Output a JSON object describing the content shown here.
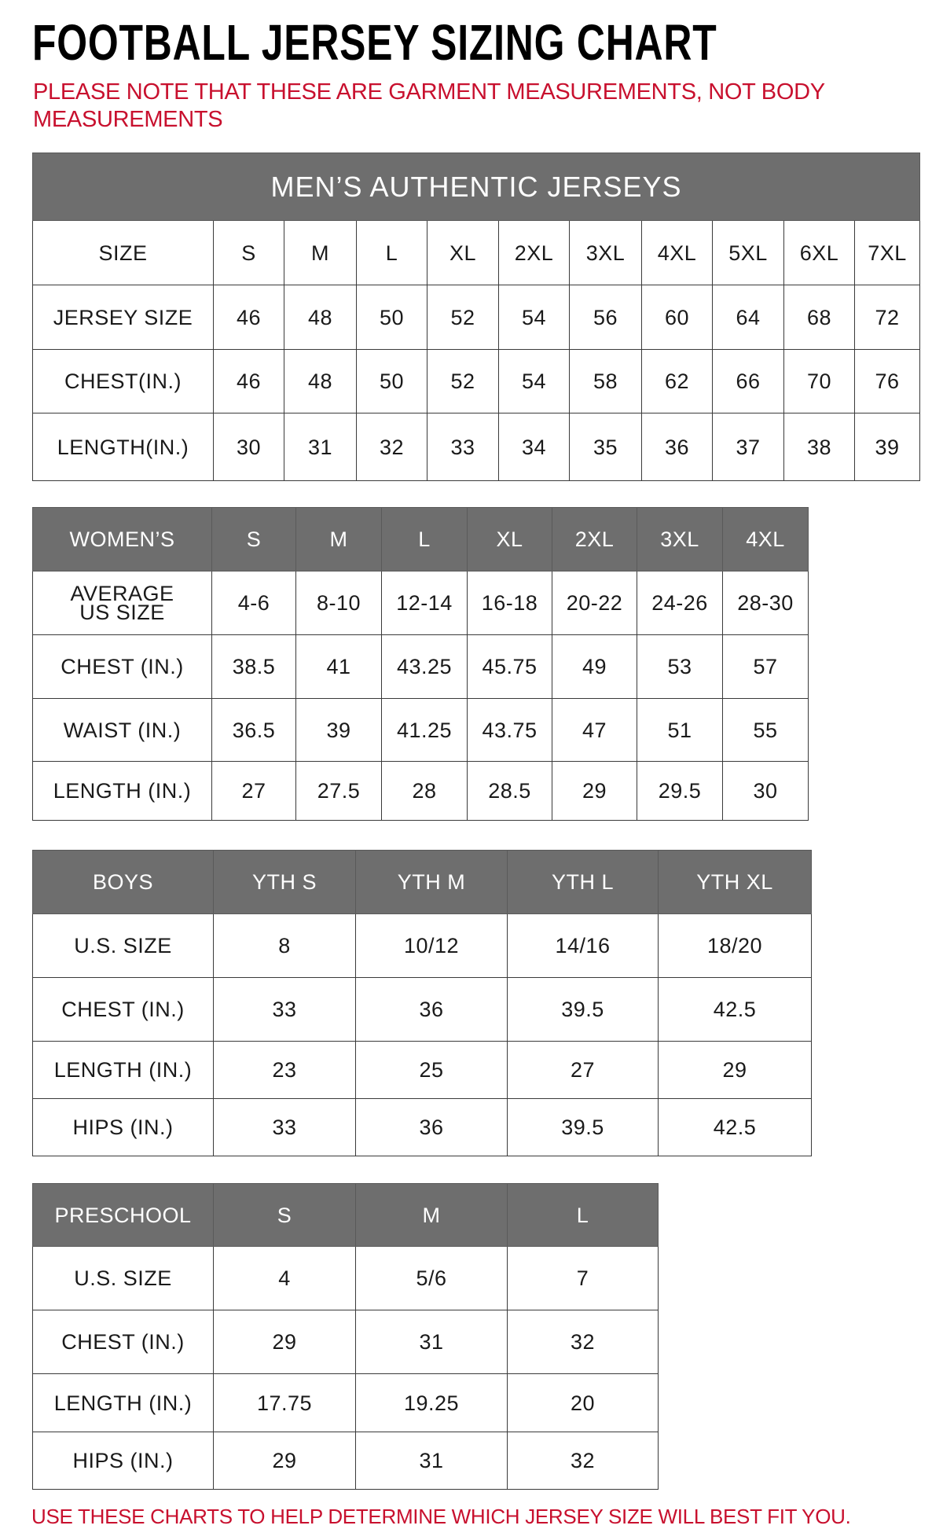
{
  "title": "FOOTBALL JERSEY SIZING CHART",
  "note": "PLEASE NOTE THAT THESE ARE GARMENT MEASUREMENTS, NOT BODY MEASUREMENTS",
  "footer": "USE THESE CHARTS TO HELP DETERMINE WHICH JERSEY SIZE WILL BEST FIT YOU.",
  "colors": {
    "header_bg": "#6e6e6e",
    "note_red": "#c8102e",
    "grid": "#3a3a3a"
  },
  "tables": [
    {
      "caption": "MEN’S AUTHENTIC JERSEYS",
      "header": [
        "SIZE",
        "S",
        "M",
        "L",
        "XL",
        "2XL",
        "3XL",
        "4XL",
        "5XL",
        "6XL",
        "7XL"
      ],
      "header_style": "plain",
      "rows": [
        [
          "JERSEY SIZE",
          "46",
          "48",
          "50",
          "52",
          "54",
          "56",
          "60",
          "64",
          "68",
          "72"
        ],
        [
          "CHEST(IN.)",
          "46",
          "48",
          "50",
          "52",
          "54",
          "58",
          "62",
          "66",
          "70",
          "76"
        ],
        [
          "LENGTH(IN.)",
          "30",
          "31",
          "32",
          "33",
          "34",
          "35",
          "36",
          "37",
          "38",
          "39"
        ]
      ]
    },
    {
      "header": [
        "WOMEN’S",
        "S",
        "M",
        "L",
        "XL",
        "2XL",
        "3XL",
        "4XL"
      ],
      "rows": [
        [
          "AVERAGE US SIZE",
          "4-6",
          "8-10",
          "12-14",
          "16-18",
          "20-22",
          "24-26",
          "28-30"
        ],
        [
          "CHEST (IN.)",
          "38.5",
          "41",
          "43.25",
          "45.75",
          "49",
          "53",
          "57"
        ],
        [
          "WAIST (IN.)",
          "36.5",
          "39",
          "41.25",
          "43.75",
          "47",
          "51",
          "55"
        ],
        [
          "LENGTH (IN.)",
          "27",
          "27.5",
          "28",
          "28.5",
          "29",
          "29.5",
          "30"
        ]
      ]
    },
    {
      "header": [
        "BOYS",
        "YTH S",
        "YTH M",
        "YTH L",
        "YTH XL"
      ],
      "rows": [
        [
          "U.S. SIZE",
          "8",
          "10/12",
          "14/16",
          "18/20"
        ],
        [
          "CHEST (IN.)",
          "33",
          "36",
          "39.5",
          "42.5"
        ],
        [
          "LENGTH (IN.)",
          "23",
          "25",
          "27",
          "29"
        ],
        [
          "HIPS (IN.)",
          "33",
          "36",
          "39.5",
          "42.5"
        ]
      ]
    },
    {
      "header": [
        "PRESCHOOL",
        "S",
        "M",
        "L"
      ],
      "rows": [
        [
          "U.S. SIZE",
          "4",
          "5/6",
          "7"
        ],
        [
          "CHEST (IN.)",
          "29",
          "31",
          "32"
        ],
        [
          "LENGTH (IN.)",
          "17.75",
          "19.25",
          "20"
        ],
        [
          "HIPS (IN.)",
          "29",
          "31",
          "32"
        ]
      ]
    }
  ]
}
